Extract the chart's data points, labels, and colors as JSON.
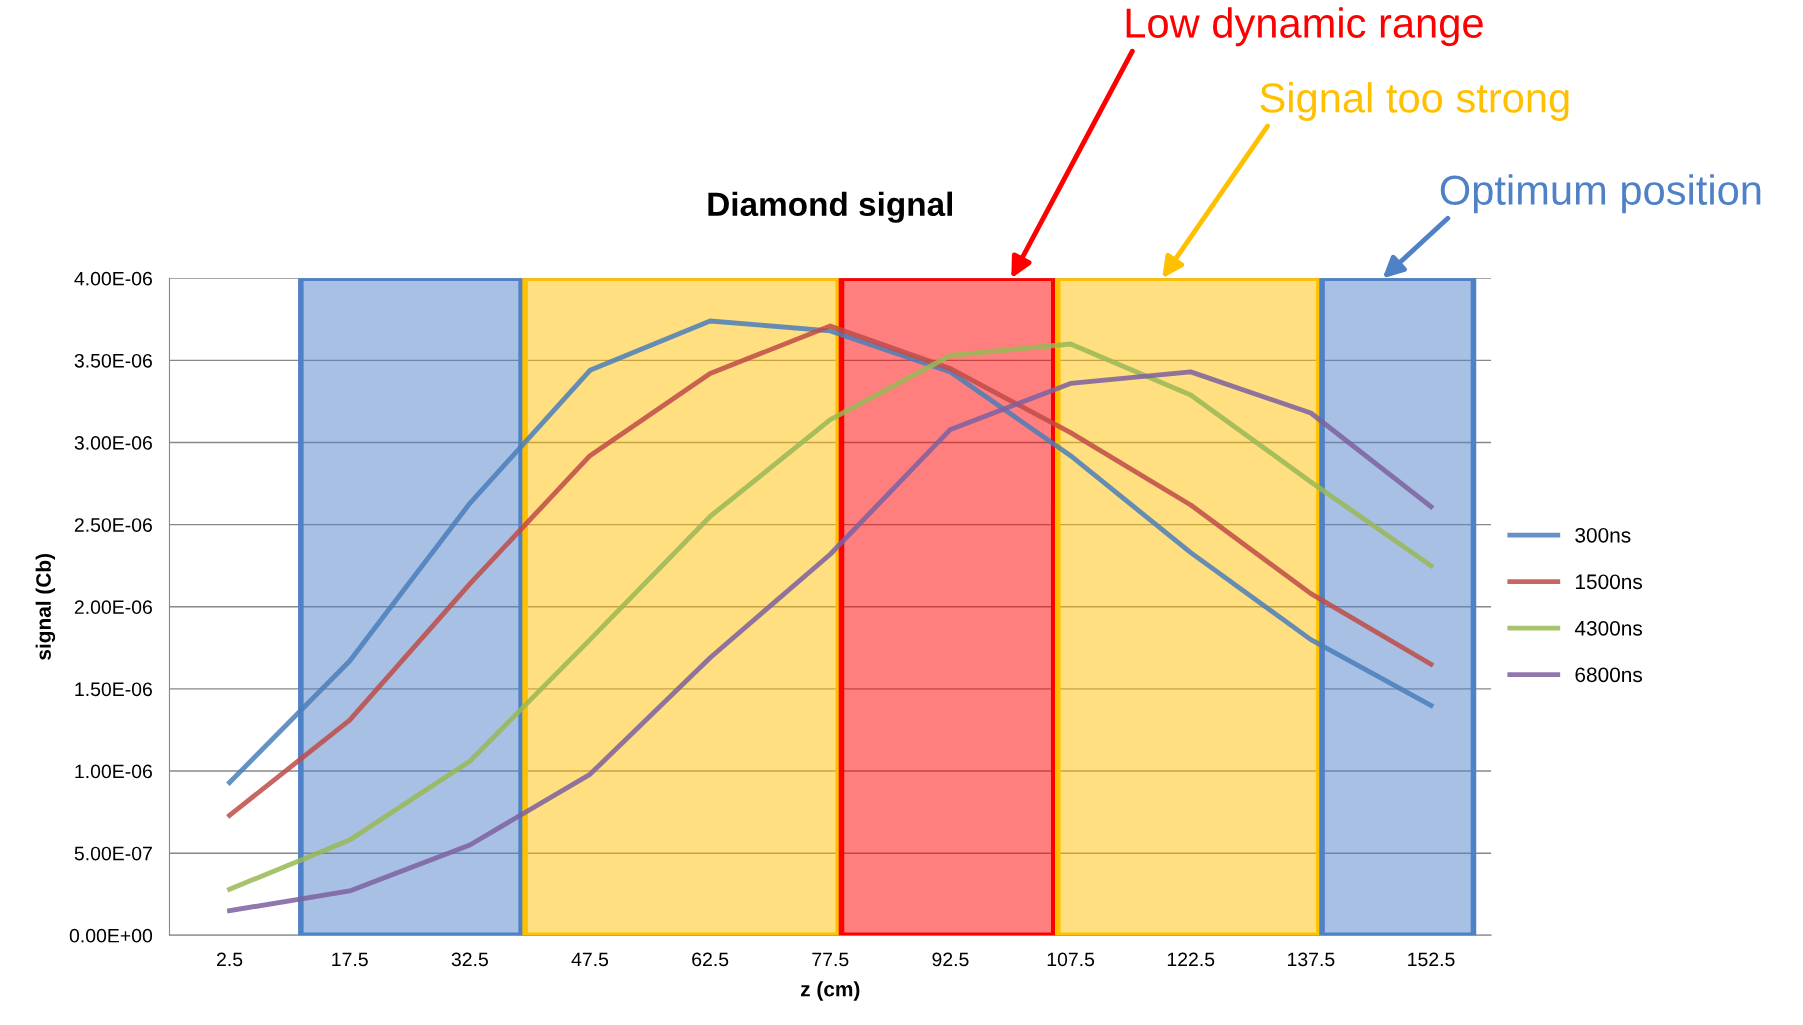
{
  "chart_data": {
    "type": "line",
    "title": "Diamond signal",
    "xlabel": "z (cm)",
    "ylabel": "signal (Cb)",
    "x": [
      2.5,
      17.5,
      32.5,
      47.5,
      62.5,
      77.5,
      92.5,
      107.5,
      122.5,
      137.5,
      152.5
    ],
    "xlim": [
      -5,
      160
    ],
    "xticks": [
      2.5,
      17.5,
      32.5,
      47.5,
      62.5,
      77.5,
      92.5,
      107.5,
      122.5,
      137.5,
      152.5
    ],
    "ylim": [
      0,
      4e-06
    ],
    "yticks": [
      {
        "value": 0,
        "label": "0.00E+00"
      },
      {
        "value": 5e-07,
        "label": "5.00E-07"
      },
      {
        "value": 1e-06,
        "label": "1.00E-06"
      },
      {
        "value": 1.5e-06,
        "label": "1.50E-06"
      },
      {
        "value": 2e-06,
        "label": "2.00E-06"
      },
      {
        "value": 2.5e-06,
        "label": "2.50E-06"
      },
      {
        "value": 3e-06,
        "label": "3.00E-06"
      },
      {
        "value": 3.5e-06,
        "label": "3.50E-06"
      },
      {
        "value": 4e-06,
        "label": "4.00E-06"
      }
    ],
    "series": [
      {
        "name": "300ns",
        "color": "#4a7ebb",
        "values": [
          9.3e-07,
          1.67e-06,
          2.63e-06,
          3.44e-06,
          3.74e-06,
          3.68e-06,
          3.43e-06,
          2.92e-06,
          2.33e-06,
          1.8e-06,
          1.4e-06
        ]
      },
      {
        "name": "1500ns",
        "color": "#be4b48",
        "values": [
          7.3e-07,
          1.31e-06,
          2.14e-06,
          2.92e-06,
          3.42e-06,
          3.71e-06,
          3.45e-06,
          3.06e-06,
          2.62e-06,
          2.08e-06,
          1.65e-06
        ]
      },
      {
        "name": "4300ns",
        "color": "#98b954",
        "values": [
          2.8e-07,
          5.8e-07,
          1.06e-06,
          1.8e-06,
          2.55e-06,
          3.14e-06,
          3.53e-06,
          3.6e-06,
          3.29e-06,
          2.76e-06,
          2.25e-06
        ]
      },
      {
        "name": "6800ns",
        "color": "#7d60a0",
        "values": [
          1.5e-07,
          2.7e-07,
          5.5e-07,
          9.8e-07,
          1.69e-06,
          2.32e-06,
          3.08e-06,
          3.36e-06,
          3.43e-06,
          3.18e-06,
          2.61e-06
        ]
      }
    ],
    "bands": [
      {
        "axis": "x",
        "from": 11.4,
        "to": 38.9,
        "color": "#4f81c7"
      },
      {
        "axis": "x",
        "from": 39.4,
        "to": 78.5,
        "color": "#ffc000"
      },
      {
        "axis": "x",
        "from": 78.9,
        "to": 105.4,
        "color": "#ff0000"
      },
      {
        "axis": "x",
        "from": 105.9,
        "to": 138.5,
        "color": "#ffc000"
      },
      {
        "axis": "x",
        "from": 138.9,
        "to": 157.8,
        "color": "#4f81c7"
      }
    ],
    "annotations": [
      "Low dynamic range",
      "Signal too strong",
      "Optimum position"
    ],
    "grid": "y",
    "legend": "right",
    "marker": "none",
    "line_style": "solid"
  }
}
